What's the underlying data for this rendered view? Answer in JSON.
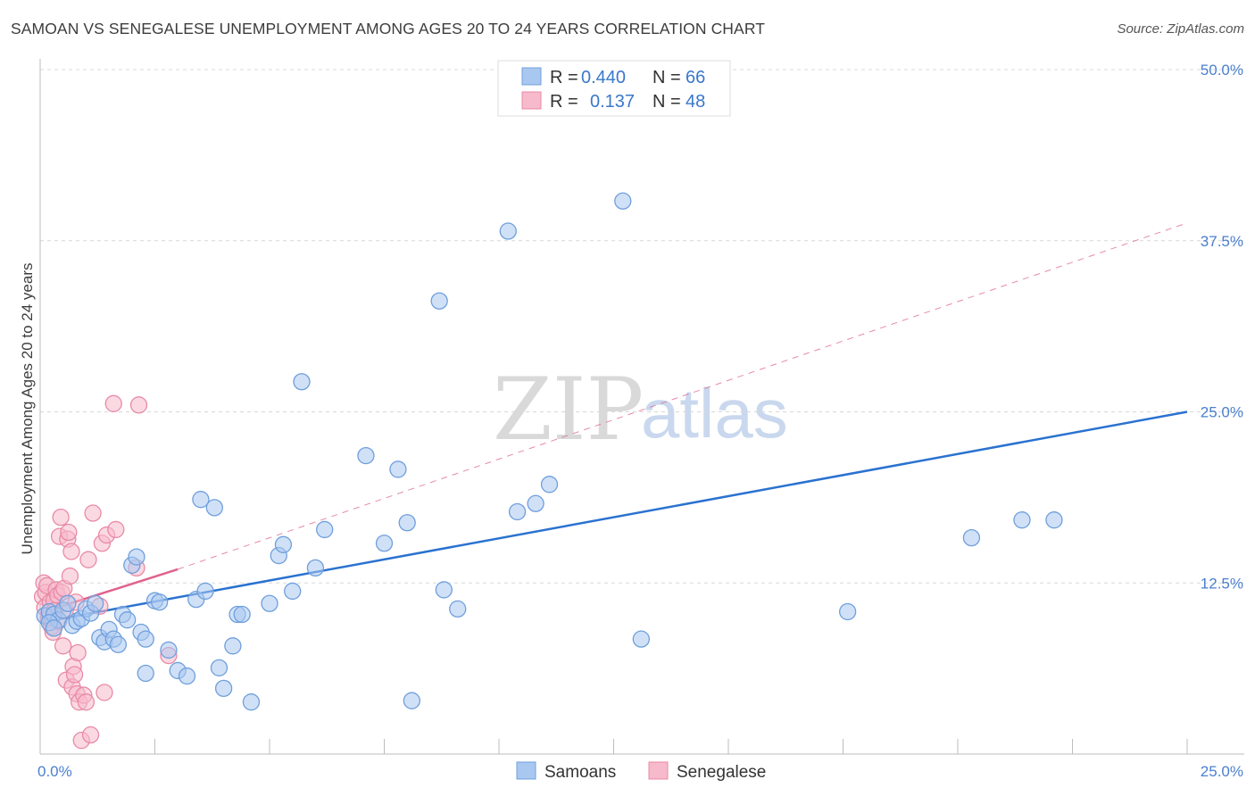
{
  "title": "SAMOAN VS SENEGALESE UNEMPLOYMENT AMONG AGES 20 TO 24 YEARS CORRELATION CHART",
  "source": "Source: ZipAtlas.com",
  "watermark": {
    "part1": "ZIP",
    "part2": "atlas"
  },
  "colors": {
    "blue_fill": "#a9c8f0",
    "blue_stroke": "#6f9fdc",
    "blue_line": "#2a72d0",
    "pink_fill": "#f7b9cc",
    "pink_stroke": "#e88aa6",
    "pink_line": "#e0628c",
    "grid": "#d8d8d8",
    "axis_text": "#4a7fcf"
  },
  "legend": {
    "rows": [
      {
        "r_label": "R =",
        "r_value": "0.440",
        "n_label": "N =",
        "n_value": "66"
      },
      {
        "r_label": "R =",
        "r_value": "0.137",
        "n_label": "N =",
        "n_value": "48"
      }
    ]
  },
  "chart_data": {
    "type": "scatter",
    "title": "SAMOAN VS SENEGALESE UNEMPLOYMENT AMONG AGES 20 TO 24 YEARS CORRELATION CHART",
    "xlabel": "",
    "ylabel": "Unemployment Among Ages 20 to 24 years",
    "xlim": [
      0,
      25
    ],
    "ylim": [
      0,
      50
    ],
    "x_tick_labels": [
      "0.0%",
      "25.0%"
    ],
    "y_ticks": [
      12.5,
      25.0,
      37.5,
      50.0
    ],
    "y_tick_labels": [
      "12.5%",
      "25.0%",
      "37.5%",
      "50.0%"
    ],
    "grid": true,
    "legend_position": "top-center",
    "series": [
      {
        "name": "Samoans",
        "trend": {
          "x": [
            0.0,
            25.0
          ],
          "y": [
            9.6,
            25.0
          ],
          "style": "solid"
        },
        "points": [
          [
            0.1,
            10.1
          ],
          [
            0.2,
            10.4
          ],
          [
            0.3,
            10.2
          ],
          [
            0.4,
            9.8
          ],
          [
            0.2,
            9.6
          ],
          [
            0.5,
            10.5
          ],
          [
            0.6,
            11.0
          ],
          [
            0.7,
            9.4
          ],
          [
            0.8,
            9.7
          ],
          [
            0.9,
            9.9
          ],
          [
            1.0,
            10.6
          ],
          [
            1.1,
            10.3
          ],
          [
            1.2,
            11.0
          ],
          [
            1.3,
            8.5
          ],
          [
            1.4,
            8.2
          ],
          [
            1.5,
            9.1
          ],
          [
            1.6,
            8.4
          ],
          [
            1.7,
            8.0
          ],
          [
            1.8,
            10.2
          ],
          [
            1.9,
            9.8
          ],
          [
            2.0,
            13.8
          ],
          [
            2.1,
            14.4
          ],
          [
            2.2,
            8.9
          ],
          [
            2.3,
            8.4
          ],
          [
            2.3,
            5.9
          ],
          [
            2.5,
            11.2
          ],
          [
            2.6,
            11.1
          ],
          [
            2.8,
            7.6
          ],
          [
            3.0,
            6.1
          ],
          [
            3.2,
            5.7
          ],
          [
            3.4,
            11.3
          ],
          [
            3.6,
            11.9
          ],
          [
            3.5,
            18.6
          ],
          [
            3.8,
            18.0
          ],
          [
            3.9,
            6.3
          ],
          [
            4.0,
            4.8
          ],
          [
            4.2,
            7.9
          ],
          [
            4.3,
            10.2
          ],
          [
            4.4,
            10.2
          ],
          [
            4.6,
            3.8
          ],
          [
            5.0,
            11.0
          ],
          [
            5.2,
            14.5
          ],
          [
            5.3,
            15.3
          ],
          [
            5.5,
            11.9
          ],
          [
            5.7,
            27.2
          ],
          [
            6.0,
            13.6
          ],
          [
            6.2,
            16.4
          ],
          [
            7.1,
            21.8
          ],
          [
            7.5,
            15.4
          ],
          [
            7.8,
            20.8
          ],
          [
            8.0,
            16.9
          ],
          [
            8.1,
            3.9
          ],
          [
            8.7,
            33.1
          ],
          [
            8.8,
            12.0
          ],
          [
            9.1,
            10.6
          ],
          [
            10.2,
            38.2
          ],
          [
            10.4,
            17.7
          ],
          [
            10.8,
            18.3
          ],
          [
            11.1,
            19.7
          ],
          [
            12.7,
            40.4
          ],
          [
            13.1,
            8.4
          ],
          [
            17.6,
            10.4
          ],
          [
            20.3,
            15.8
          ],
          [
            21.4,
            17.1
          ],
          [
            22.1,
            17.1
          ],
          [
            0.3,
            9.2
          ]
        ]
      },
      {
        "name": "Senegalese",
        "trend": {
          "x": [
            0.0,
            3.0
          ],
          "y": [
            10.3,
            13.5
          ],
          "style": "solid",
          "extension": {
            "x": [
              3.0,
              25.0
            ],
            "y": [
              13.5,
              38.8
            ],
            "style": "dashed"
          }
        },
        "points": [
          [
            0.05,
            11.5
          ],
          [
            0.08,
            12.5
          ],
          [
            0.1,
            10.7
          ],
          [
            0.12,
            11.8
          ],
          [
            0.15,
            12.3
          ],
          [
            0.18,
            9.9
          ],
          [
            0.2,
            10.2
          ],
          [
            0.22,
            11.1
          ],
          [
            0.25,
            9.3
          ],
          [
            0.28,
            8.9
          ],
          [
            0.3,
            11.2
          ],
          [
            0.32,
            10.5
          ],
          [
            0.35,
            12.0
          ],
          [
            0.38,
            11.6
          ],
          [
            0.4,
            9.7
          ],
          [
            0.42,
            15.9
          ],
          [
            0.45,
            17.3
          ],
          [
            0.47,
            11.8
          ],
          [
            0.5,
            7.9
          ],
          [
            0.52,
            12.1
          ],
          [
            0.55,
            10.5
          ],
          [
            0.57,
            5.4
          ],
          [
            0.6,
            15.7
          ],
          [
            0.62,
            16.2
          ],
          [
            0.65,
            13.0
          ],
          [
            0.68,
            14.8
          ],
          [
            0.7,
            4.9
          ],
          [
            0.72,
            6.4
          ],
          [
            0.75,
            5.8
          ],
          [
            0.78,
            11.1
          ],
          [
            0.8,
            4.4
          ],
          [
            0.82,
            7.4
          ],
          [
            0.85,
            3.8
          ],
          [
            0.9,
            1.0
          ],
          [
            0.95,
            4.3
          ],
          [
            1.0,
            3.8
          ],
          [
            1.05,
            14.2
          ],
          [
            1.1,
            1.4
          ],
          [
            1.15,
            17.6
          ],
          [
            1.3,
            10.8
          ],
          [
            1.35,
            15.4
          ],
          [
            1.4,
            4.5
          ],
          [
            1.45,
            16.0
          ],
          [
            1.6,
            25.6
          ],
          [
            1.65,
            16.4
          ],
          [
            2.1,
            13.6
          ],
          [
            2.15,
            25.5
          ],
          [
            2.8,
            7.2
          ]
        ]
      }
    ]
  },
  "bottom_legend": {
    "items": [
      "Samoans",
      "Senegalese"
    ]
  }
}
